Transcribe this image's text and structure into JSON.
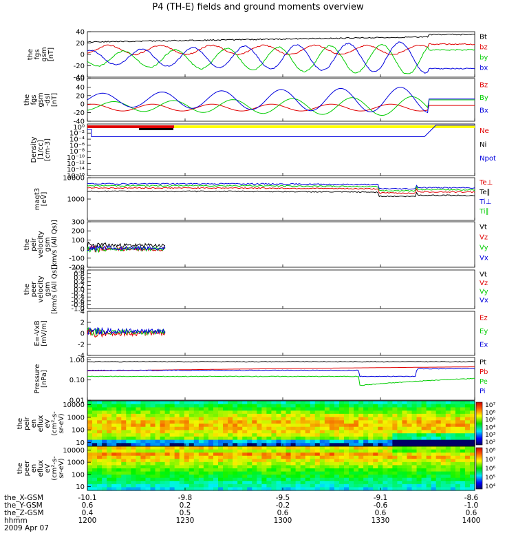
{
  "title": "P4 (TH-E) fields and ground moments overview",
  "chart_data": {
    "type": "line",
    "x_axis": {
      "rows": [
        "the_X-GSM",
        "the_Y-GSM",
        "the_Z-GSM",
        "hhmm",
        "2009 Apr 07"
      ],
      "ticks": [
        {
          "x": "-10.1",
          "y": "0.6",
          "z": "0.4",
          "hhmm": "1200"
        },
        {
          "x": "-9.8",
          "y": "0.2",
          "z": "0.5",
          "hhmm": "1230"
        },
        {
          "x": "-9.5",
          "y": "-0.2",
          "z": "0.6",
          "hhmm": "1300"
        },
        {
          "x": "-9.1",
          "y": "-0.6",
          "z": "0.6",
          "hhmm": "1330"
        },
        {
          "x": "-8.6",
          "y": "-1.0",
          "z": "0.6",
          "hhmm": "1400"
        }
      ]
    },
    "panels": [
      {
        "id": "fgs",
        "ylabel": [
          "the",
          "fgs",
          "gsm",
          "[nT]"
        ],
        "ylim": [
          -40,
          40
        ],
        "ticks": [
          "40",
          "20",
          "0",
          "-20",
          "-40"
        ],
        "tick_values": [
          40,
          20,
          0,
          -20,
          -40
        ],
        "series": [
          {
            "name": "Bt",
            "color": "#000000"
          },
          {
            "name": "bz",
            "color": "#e00000"
          },
          {
            "name": "by",
            "color": "#00cc00"
          },
          {
            "name": "bx",
            "color": "#0000dd"
          }
        ]
      },
      {
        "id": "fgs-dsl",
        "ylabel": [
          "the",
          "fgs",
          "gsm",
          "-dsl",
          "[nT]"
        ],
        "ylim": [
          -40,
          60
        ],
        "ticks": [
          "60",
          "40",
          "20",
          "0",
          "-20",
          "-40"
        ],
        "tick_values": [
          60,
          40,
          20,
          0,
          -20,
          -40
        ],
        "series": [
          {
            "name": "Bz",
            "color": "#e00000"
          },
          {
            "name": "By",
            "color": "#00cc00"
          },
          {
            "name": "Bx",
            "color": "#0000dd"
          }
        ]
      },
      {
        "id": "density",
        "ylabel": [
          "Density",
          "[1/cc]",
          "[cm-3]"
        ],
        "scale": "log",
        "ticks": [
          "10⁰",
          "10⁻²",
          "10⁻⁴",
          "10⁻⁶",
          "10⁻⁸",
          "10⁻¹⁰",
          "10⁻¹²",
          "10⁻¹⁴",
          "10⁻¹⁶"
        ],
        "tick_values": [
          0,
          -2,
          -4,
          -6,
          -8,
          -10,
          -12,
          -14,
          -16
        ],
        "ylim": [
          -16,
          1
        ],
        "series": [
          {
            "name": "Ne",
            "color": "#e00000"
          },
          {
            "name": "Ni",
            "color": "#000000"
          },
          {
            "name": "Npot",
            "color": "#0000dd"
          }
        ]
      },
      {
        "id": "magt3",
        "ylabel": [
          "magt3",
          "[eV]"
        ],
        "scale": "log",
        "ylim": [
          100,
          10000
        ],
        "ticks": [
          "10000",
          "1000"
        ],
        "tick_values": [
          10000,
          1000
        ],
        "series": [
          {
            "name": "Te⊥",
            "color": "#e00000"
          },
          {
            "name": "Te∥",
            "color": "#000000"
          },
          {
            "name": "Ti⊥",
            "color": "#0000dd"
          },
          {
            "name": "Ti∥",
            "color": "#00cc00"
          }
        ]
      },
      {
        "id": "peir-vel",
        "ylabel": [
          "the",
          "peir",
          "velocity",
          "gsm",
          "[km/s (All Qs)]"
        ],
        "ylim": [
          -200,
          300
        ],
        "ticks": [
          "300",
          "200",
          "100",
          "0",
          "-100",
          "-200"
        ],
        "tick_values": [
          300,
          200,
          100,
          0,
          -100,
          -200
        ],
        "series": [
          {
            "name": "Vt",
            "color": "#000000"
          },
          {
            "name": "Vz",
            "color": "#e00000"
          },
          {
            "name": "Vy",
            "color": "#00cc00"
          },
          {
            "name": "Vx",
            "color": "#0000dd"
          }
        ]
      },
      {
        "id": "peer-vel",
        "ylabel": [
          "the",
          "peer",
          "velocity",
          "gsm",
          "[km/s (All Qs)]"
        ],
        "ylim": [
          -1,
          1
        ],
        "ticks": [
          "1.0",
          "0.8",
          "0.6",
          "0.4",
          "0.2",
          "0.0",
          "-0.2",
          "-0.4",
          "-0.6",
          "-0.8",
          "-1.0"
        ],
        "tick_values": [
          1.0,
          0.8,
          0.6,
          0.4,
          0.2,
          0.0,
          -0.2,
          -0.4,
          -0.6,
          -0.8,
          -1.0
        ],
        "series": [
          {
            "name": "Vt",
            "color": "#000000"
          },
          {
            "name": "Vz",
            "color": "#e00000"
          },
          {
            "name": "Vy",
            "color": "#00cc00"
          },
          {
            "name": "Vx",
            "color": "#0000dd"
          }
        ]
      },
      {
        "id": "efield",
        "ylabel": [
          "E=-VxB",
          "[mV/m]"
        ],
        "ylim": [
          -4,
          4
        ],
        "ticks": [
          "4",
          "2",
          "0",
          "-2",
          "-4"
        ],
        "tick_values": [
          4,
          2,
          0,
          -2,
          -4
        ],
        "series": [
          {
            "name": "Ez",
            "color": "#e00000"
          },
          {
            "name": "Ey",
            "color": "#00cc00"
          },
          {
            "name": "Ex",
            "color": "#0000dd"
          }
        ]
      },
      {
        "id": "pressure",
        "ylabel": [
          "Pressure",
          "[nPa]"
        ],
        "scale": "log",
        "ylim": [
          0.01,
          1.3
        ],
        "ticks": [
          "1.00",
          "0.10",
          "0.01"
        ],
        "tick_values": [
          1.0,
          0.1,
          0.01
        ],
        "series": [
          {
            "name": "Pt",
            "color": "#000000"
          },
          {
            "name": "Pb",
            "color": "#e00000"
          },
          {
            "name": "Pe",
            "color": "#00cc00"
          },
          {
            "name": "Pi",
            "color": "#0000dd"
          }
        ]
      },
      {
        "id": "peir-spec",
        "type": "heatmap",
        "ylabel": [
          "the",
          "peir",
          "en",
          "eflux",
          "eV",
          "(cm²-s-",
          "sr-eV)"
        ],
        "scale": "log",
        "ylim": [
          5,
          20000
        ],
        "ticks": [
          "10000",
          "1000",
          "100",
          "10"
        ],
        "tick_values": [
          10000,
          1000,
          100,
          10
        ],
        "colorbar": [
          "10⁷",
          "10⁶",
          "10⁵",
          "10⁴",
          "10³",
          "10²"
        ]
      },
      {
        "id": "peer-spec",
        "type": "heatmap",
        "ylabel": [
          "the",
          "peer",
          "en",
          "eflux",
          "eV",
          "(cm²-s-",
          "sr-eV)"
        ],
        "scale": "log",
        "ylim": [
          5,
          20000
        ],
        "ticks": [
          "10000",
          "1000",
          "100",
          "10"
        ],
        "tick_values": [
          10000,
          1000,
          100,
          10
        ],
        "colorbar": [
          "10⁸",
          "10⁷",
          "10⁶",
          "10⁵",
          "10⁴"
        ]
      }
    ]
  }
}
